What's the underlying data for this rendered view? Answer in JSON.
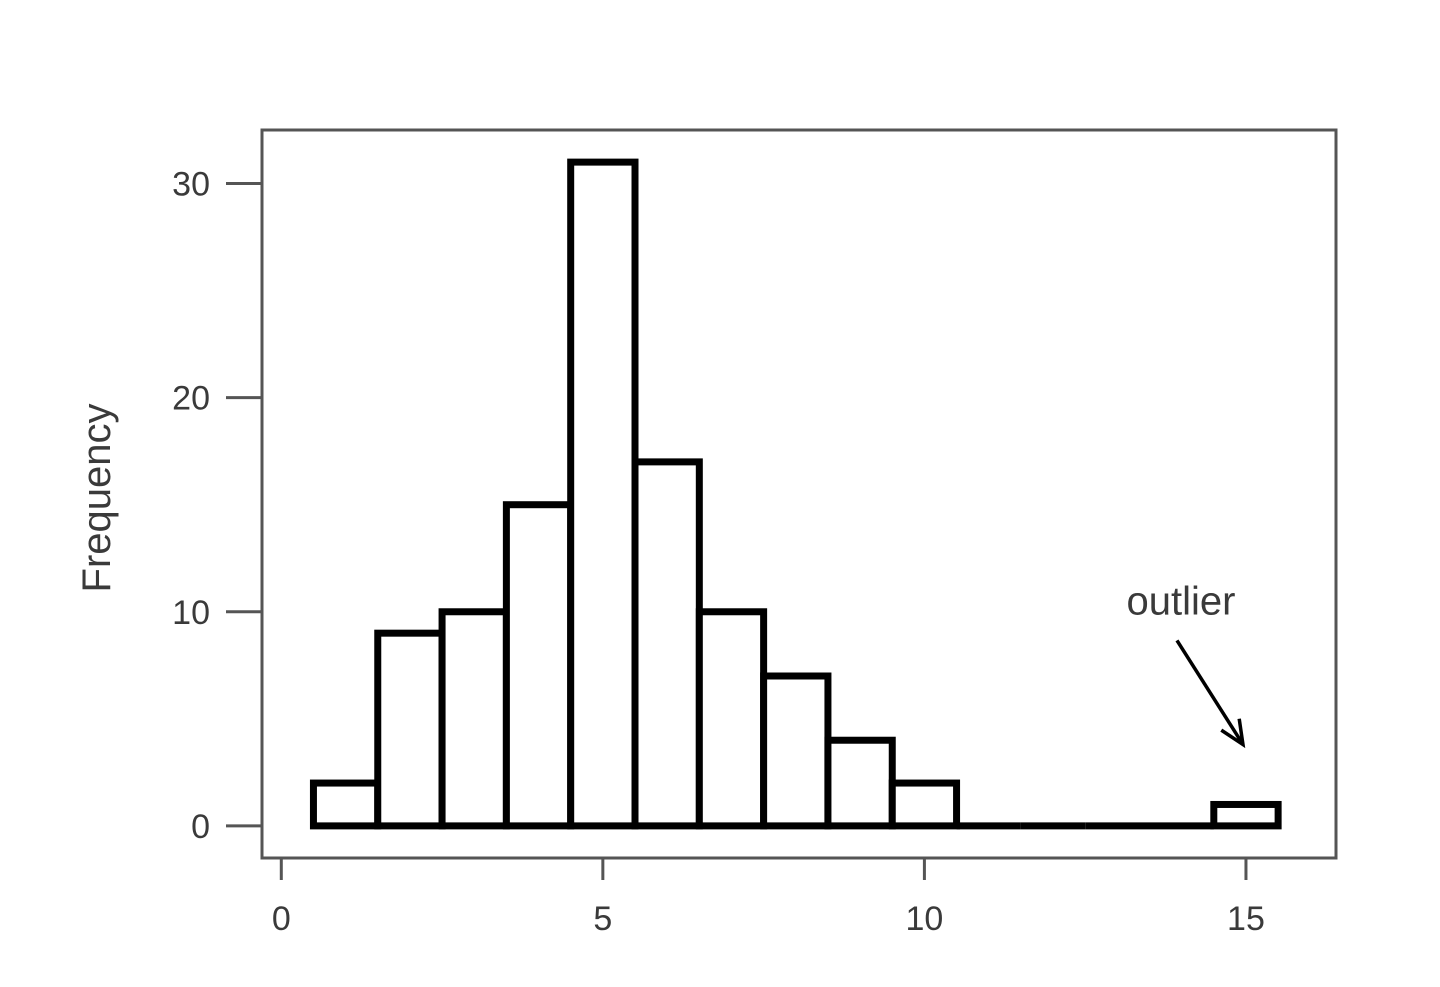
{
  "chart_data": {
    "type": "bar",
    "title": "",
    "xlabel": "",
    "ylabel": "Frequency",
    "bins": [
      {
        "start": 0.5,
        "end": 1.5,
        "value": 2
      },
      {
        "start": 1.5,
        "end": 2.5,
        "value": 9
      },
      {
        "start": 2.5,
        "end": 3.5,
        "value": 10
      },
      {
        "start": 3.5,
        "end": 4.5,
        "value": 15
      },
      {
        "start": 4.5,
        "end": 5.5,
        "value": 31
      },
      {
        "start": 5.5,
        "end": 6.5,
        "value": 17
      },
      {
        "start": 6.5,
        "end": 7.5,
        "value": 10
      },
      {
        "start": 7.5,
        "end": 8.5,
        "value": 7
      },
      {
        "start": 8.5,
        "end": 9.5,
        "value": 4
      },
      {
        "start": 9.5,
        "end": 10.5,
        "value": 2
      },
      {
        "start": 10.5,
        "end": 11.5,
        "value": 0
      },
      {
        "start": 11.5,
        "end": 12.5,
        "value": 0
      },
      {
        "start": 12.5,
        "end": 13.5,
        "value": 0
      },
      {
        "start": 13.5,
        "end": 14.5,
        "value": 0
      },
      {
        "start": 14.5,
        "end": 15.5,
        "value": 1
      }
    ],
    "xlim": [
      -0.3,
      16.4
    ],
    "ylim": [
      -1.5,
      32.5
    ],
    "xticks": [
      0,
      5,
      10,
      15
    ],
    "xtick_labels": [
      "0",
      "5",
      "10",
      "15"
    ],
    "yticks": [
      0,
      10,
      20,
      30
    ],
    "ytick_labels": [
      "0",
      "10",
      "20",
      "30"
    ],
    "grid": false,
    "legend": "none",
    "annotations": [
      {
        "text": "outlier",
        "points_to": {
          "x": 15,
          "y": 1
        }
      }
    ],
    "colors": {
      "bar_fill": "#ffffff",
      "bar_stroke": "#000000",
      "frame": "#555555",
      "text": "#3a3a3a"
    }
  }
}
